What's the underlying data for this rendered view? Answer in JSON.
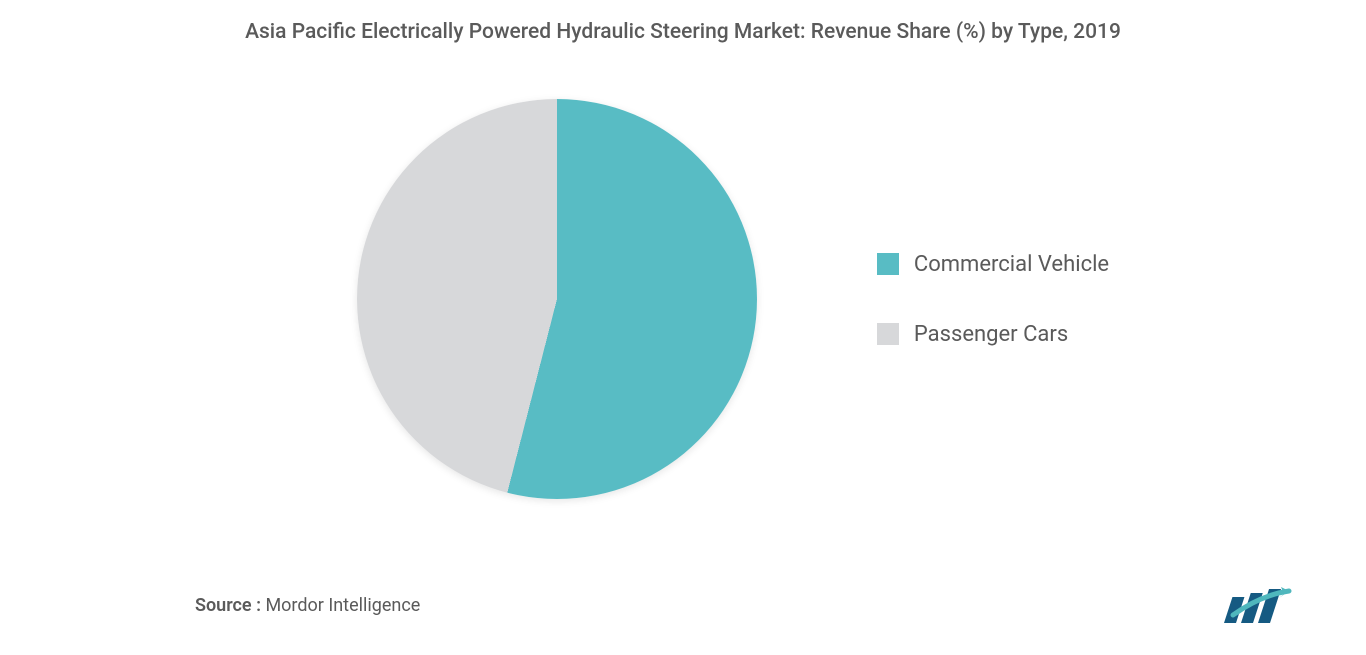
{
  "chart": {
    "title": "Asia Pacific Electrically Powered Hydraulic Steering Market: Revenue Share (%) by Type, 2019",
    "type": "pie",
    "series": [
      {
        "name": "Commercial Vehicle",
        "value": 54,
        "color": "#58bcc4"
      },
      {
        "name": "Passenger Cars",
        "value": 46,
        "color": "#d7d8da"
      }
    ],
    "background_color": "#ffffff",
    "title_fontsize": 21,
    "title_color": "#5a5a5a",
    "legend_fontsize": 22,
    "legend_color": "#5a5a5a",
    "legend_swatch_size": 22,
    "pie_diameter": 400
  },
  "footer": {
    "source_label": "Source : ",
    "source_name": "Mordor Intelligence",
    "logo_colors": {
      "bars": "#155a82",
      "arrow": "#4fb7bd"
    }
  }
}
